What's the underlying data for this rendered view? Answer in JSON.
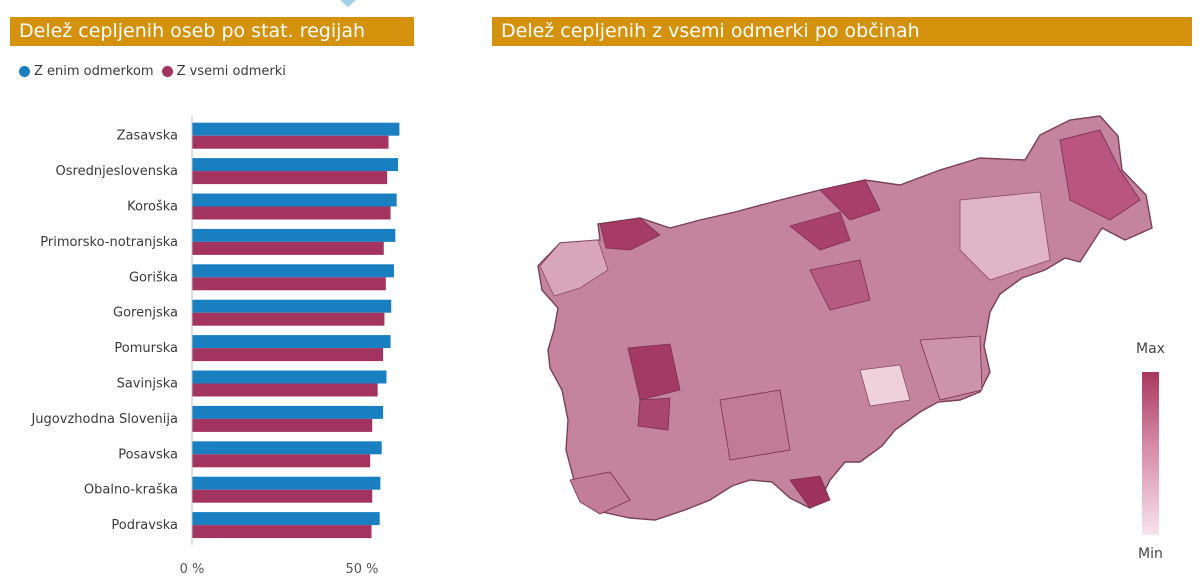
{
  "left_panel": {
    "title": "Delež cepljenih oseb po stat. regijah"
  },
  "right_panel": {
    "title": "Delež cepljenih z vsemi odmerki po občinah"
  },
  "legend": {
    "items": [
      {
        "label": "Z enim odmerkom",
        "color": "#1a7fc1"
      },
      {
        "label": "Z vsemi odmerki",
        "color": "#a3345f"
      }
    ]
  },
  "chart_data": [
    {
      "type": "bar",
      "orientation": "horizontal",
      "categories": [
        "Zasavska",
        "Osrednjeslovenska",
        "Koroška",
        "Primorsko-notranjska",
        "Goriška",
        "Gorenjska",
        "Pomurska",
        "Savinjska",
        "Jugovzhodna Slovenija",
        "Posavska",
        "Obalno-kraška",
        "Podravska"
      ],
      "series": [
        {
          "name": "Z enim odmerkom",
          "color": "#1a7fc1",
          "values": [
            61,
            60.6,
            60.2,
            59.8,
            59.4,
            58.6,
            58.4,
            57.2,
            56.2,
            55.8,
            55.4,
            55.2
          ]
        },
        {
          "name": "Z vsemi odmerki",
          "color": "#a3345f",
          "values": [
            57.8,
            57.4,
            58.4,
            56.4,
            57,
            56.6,
            56.2,
            54.6,
            53,
            52.4,
            53,
            52.8
          ]
        }
      ],
      "xlim": [
        0,
        70
      ],
      "xticks": [
        0,
        50
      ],
      "xtick_labels": [
        "0 %",
        "50 %"
      ]
    },
    {
      "type": "heatmap",
      "subtype": "choropleth",
      "colorscale": {
        "max_label": "Max",
        "min_label": "Min",
        "max_color": "#a8385f",
        "min_color": "#f8e3ec"
      }
    }
  ]
}
